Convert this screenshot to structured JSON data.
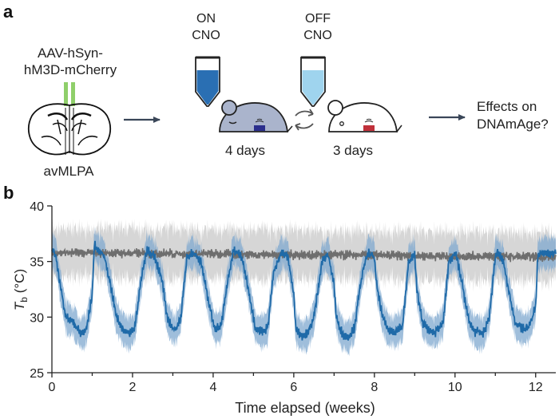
{
  "panel_a": {
    "letter": "a",
    "virus_line1": "AAV-hSyn-",
    "virus_line2": "hM3D-mCherry",
    "region": "avMLPA",
    "on_line1": "ON",
    "on_line2": "CNO",
    "off_line1": "OFF",
    "off_line2": "CNO",
    "on_duration": "4 days",
    "off_duration": "3 days",
    "outcome_line1": "Effects on",
    "outcome_line2": "DNAmAge?",
    "colors": {
      "electrode": "#8fcf6a",
      "on_liquid": "#2a6fb3",
      "off_liquid": "#9fd4ee",
      "cold_mouse": "#aab4cc",
      "cold_device": "#2b2e8c",
      "warm_device": "#c0303a",
      "arrow": "#3a4658"
    },
    "icons": [
      "brain-section-icon",
      "syringe-icon",
      "mouse-icon",
      "cycle-arrows-icon"
    ]
  },
  "panel_b": {
    "letter": "b",
    "ylabel_main": "T",
    "ylabel_sub": "b",
    "ylabel_unit": " (°C)",
    "xlabel": "Time elapsed (weeks)"
  },
  "chart_data": {
    "type": "line",
    "x_label": "Time elapsed (weeks)",
    "y_label": "Tb (°C)",
    "xlim": [
      0,
      12.5
    ],
    "ylim": [
      25,
      40
    ],
    "x_ticks": [
      0,
      2,
      4,
      6,
      8,
      10,
      12
    ],
    "y_ticks": [
      25,
      30,
      35,
      40
    ],
    "grid": false,
    "series": [
      {
        "color": "#1f6aa8",
        "band_color": "#7fa8cf",
        "mean_x": [
          0,
          0.1,
          0.2,
          0.35,
          0.55,
          0.7,
          0.85,
          1.0,
          1.05,
          1.15,
          1.3,
          1.45,
          1.6,
          1.75,
          1.9,
          2.05,
          2.2,
          2.35,
          2.55,
          2.75,
          2.85,
          3.0,
          3.05,
          3.2,
          3.35,
          3.5,
          3.7,
          3.85,
          4.0,
          4.05,
          4.2,
          4.35,
          4.5,
          4.7,
          4.85,
          5.0,
          5.05,
          5.2,
          5.35,
          5.5,
          5.7,
          5.85,
          6.0,
          6.05,
          6.2,
          6.35,
          6.5,
          6.7,
          6.85,
          7.0,
          7.05,
          7.2,
          7.35,
          7.5,
          7.7,
          7.85,
          8.0,
          8.05,
          8.2,
          8.35,
          8.5,
          8.7,
          8.85,
          9.0,
          9.05,
          9.2,
          9.35,
          9.5,
          9.7,
          9.85,
          10.0,
          10.05,
          10.2,
          10.35,
          10.5,
          10.7,
          10.85,
          11.0,
          11.05,
          11.2,
          11.35,
          11.5,
          11.7,
          11.85,
          12.0,
          12.05,
          12.2,
          12.35,
          12.5
        ],
        "mean_y": [
          36,
          35.5,
          33,
          30,
          29.5,
          28.5,
          28.8,
          32,
          36.5,
          36,
          35.5,
          33,
          30,
          29,
          28.5,
          29,
          33,
          36,
          35.5,
          33,
          30,
          29,
          28.8,
          30,
          35.5,
          35.8,
          35,
          32,
          29.5,
          29,
          29.2,
          33,
          36,
          35.5,
          33,
          30,
          29,
          28.7,
          29,
          34,
          35.8,
          35.5,
          32,
          29,
          28.3,
          28.5,
          30,
          35,
          35.6,
          33,
          30,
          28.5,
          28.2,
          29,
          34,
          35.8,
          35.4,
          33,
          30,
          28.8,
          28.7,
          29.2,
          35,
          35.6,
          32.5,
          29.5,
          28.8,
          28.6,
          29.5,
          35,
          35.7,
          35.3,
          32.5,
          29.5,
          28.7,
          28.5,
          30,
          35.5,
          35.8,
          35,
          32,
          29.5,
          28.9,
          29.2,
          31,
          35.5,
          35.8,
          35.7,
          35.8
        ]
      },
      {
        "color": "#6e6e6e",
        "band_color": "#cfcfcf",
        "mean_x": [
          0,
          12.5
        ],
        "mean_y": [
          35.8,
          35.4
        ]
      }
    ]
  }
}
